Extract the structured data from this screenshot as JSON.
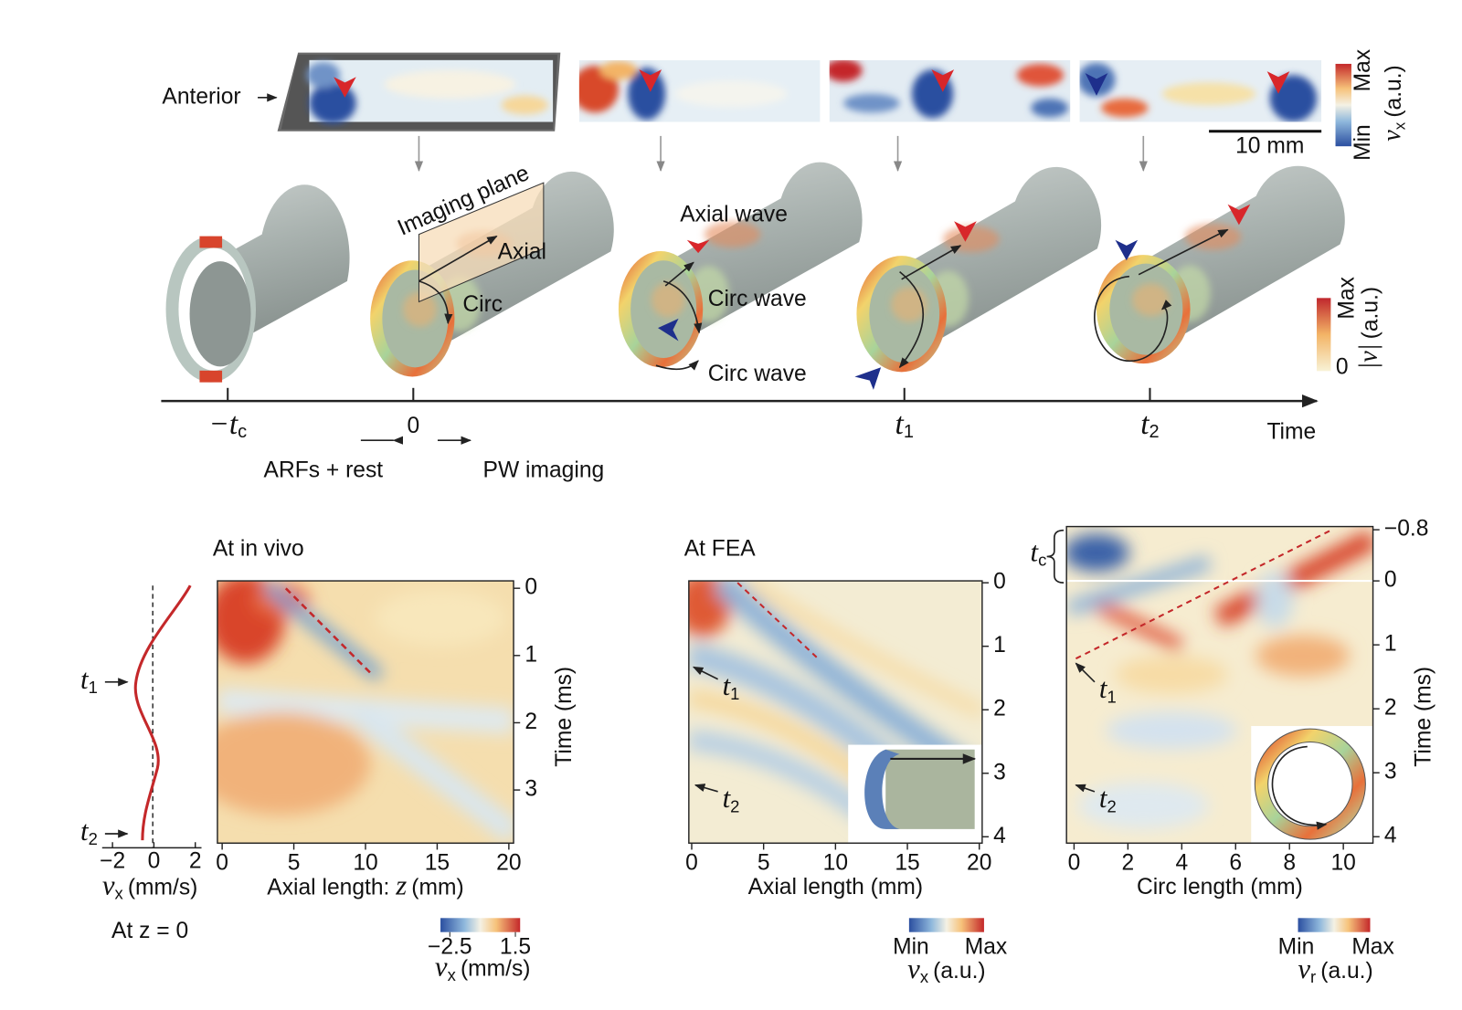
{
  "top_strip": {
    "anterior": "Anterior",
    "scale_bar": "10 mm",
    "colorbar": {
      "max": "Max",
      "min": "Min",
      "label": {
        "symbol": "v",
        "sub": "x",
        "unit": "(a.u.)"
      }
    }
  },
  "cylinders": {
    "imaging_plane": "Imaging plane",
    "axial": "Axial",
    "circ": "Circ",
    "axial_wave": "Axial wave",
    "circ_wave_upper": "Circ wave",
    "circ_wave_lower": "Circ wave",
    "colorbar": {
      "max": "Max",
      "zero": "0",
      "label": {
        "symbol": "|v|",
        "unit": "(a.u.)"
      }
    }
  },
  "timeline": {
    "ticks": [
      {
        "symbol": "−t",
        "sub": "c"
      },
      {
        "text": "0"
      },
      {
        "symbol": "t",
        "sub": "1"
      },
      {
        "symbol": "t",
        "sub": "2"
      }
    ],
    "axis_label": "Time",
    "left_note": "ARFs + rest",
    "right_note": "PW imaging"
  },
  "panels": [
    {
      "title": "At in vivo",
      "profile": {
        "xlim": [
          -2.5,
          2.3
        ],
        "xticks": [
          {
            "value": -2,
            "label": "−2"
          },
          0,
          2
        ],
        "xlabel": {
          "symbol": "v",
          "sub": "x",
          "unit": "(mm/s)"
        },
        "note": "At z = 0",
        "markers": [
          {
            "symbol": "t",
            "sub": "1"
          },
          {
            "symbol": "t",
            "sub": "2"
          }
        ]
      },
      "xlim": [
        -0.33,
        20.33
      ],
      "xticks": [
        0,
        5,
        10,
        15,
        20
      ],
      "xlabel": {
        "text": "Axial length: ",
        "symbol": "z",
        "unit": "(mm)"
      },
      "ylim": [
        -0.11,
        3.79
      ],
      "yticks": [
        0,
        1,
        2,
        3
      ],
      "ylabel": "Time (ms)",
      "colorbar": {
        "lim": [
          -3.07,
          1.79
        ],
        "ticks": [
          {
            "value": -2.5,
            "label": "−2.5"
          },
          1.5
        ],
        "label": {
          "symbol": "v",
          "sub": "x",
          "unit": "(mm/s)"
        }
      }
    },
    {
      "title": "At FEA",
      "markers": [
        {
          "symbol": "t",
          "sub": "1"
        },
        {
          "symbol": "t",
          "sub": "2"
        }
      ],
      "xlim": [
        -0.2,
        20.2
      ],
      "xticks": [
        0,
        5,
        10,
        15,
        20
      ],
      "xlabel": "Axial length (mm)",
      "ylim": [
        -0.03,
        4.1
      ],
      "yticks": [
        0,
        1,
        2,
        3,
        4
      ],
      "colorbar": {
        "min": "Min",
        "max": "Max",
        "label": {
          "symbol": "v",
          "sub": "x",
          "unit": "(a.u.)"
        }
      }
    },
    {
      "range_marker": {
        "symbol": "t",
        "sub": "c"
      },
      "markers": [
        {
          "symbol": "t",
          "sub": "1"
        },
        {
          "symbol": "t",
          "sub": "2"
        }
      ],
      "xlim": [
        -0.28,
        11.1
      ],
      "xticks": [
        0,
        2,
        4,
        6,
        8,
        10
      ],
      "xlabel": "Circ length (mm)",
      "ylim": [
        -0.85,
        4.1
      ],
      "yticks": [
        {
          "value": -0.8,
          "label": "−0.8"
        },
        0,
        1,
        2,
        3,
        4
      ],
      "ylabel": "Time (ms)",
      "colorbar": {
        "min": "Min",
        "max": "Max",
        "label": {
          "symbol": "v",
          "sub": "r",
          "unit": "(a.u.)"
        }
      }
    }
  ]
}
